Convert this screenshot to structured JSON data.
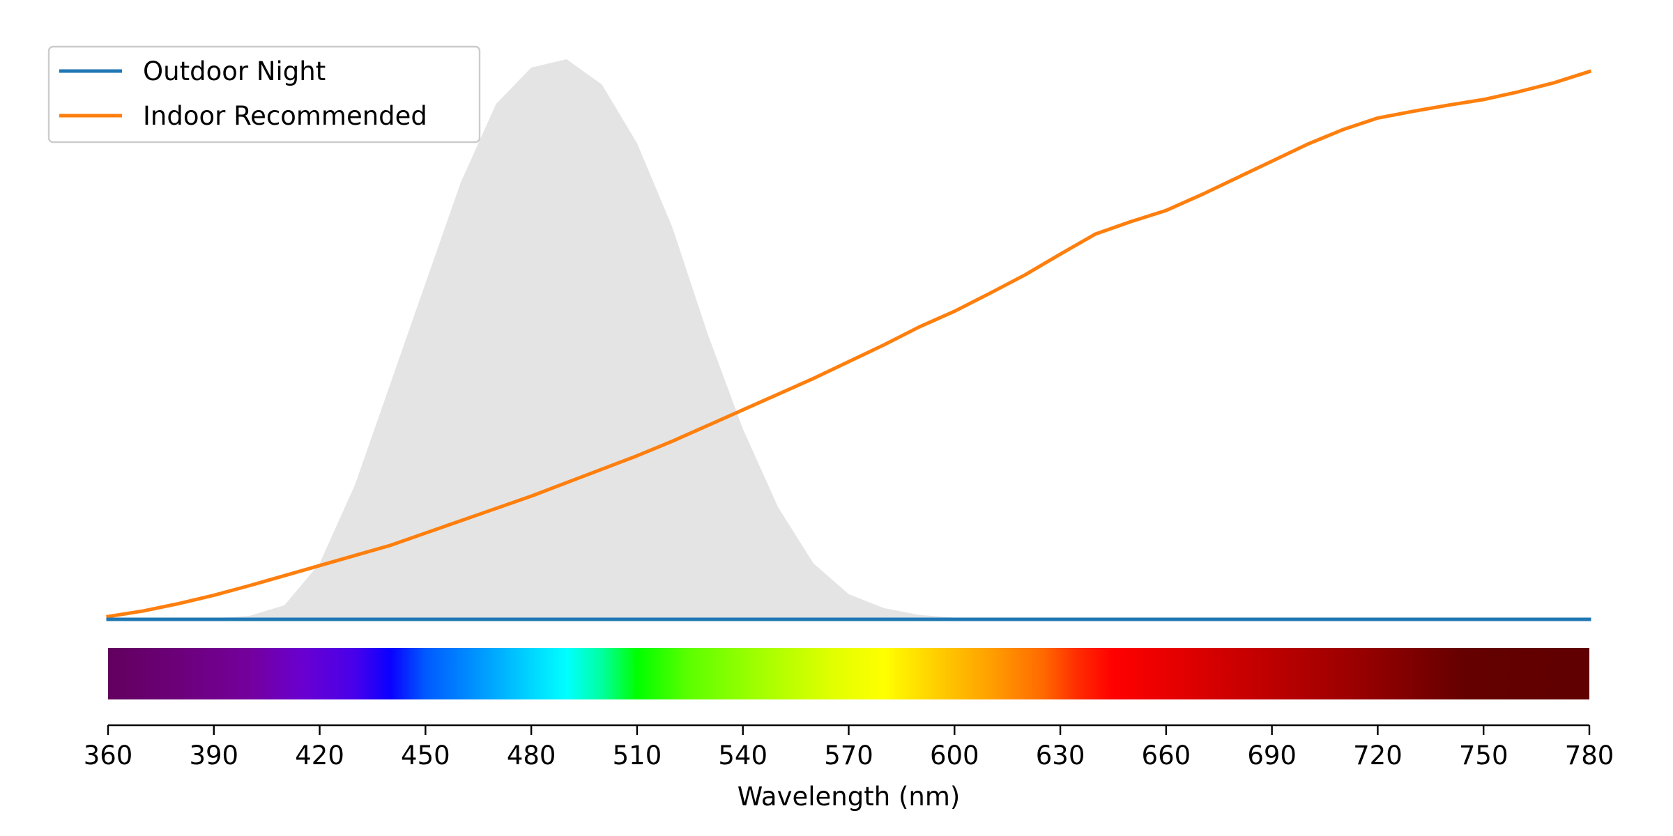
{
  "chart_data": {
    "type": "line",
    "title": "",
    "xlabel": "Wavelength (nm)",
    "ylabel": "",
    "xlim": [
      360,
      780
    ],
    "ylim": [
      0,
      1
    ],
    "grid": false,
    "legend_position": "top-left",
    "x_ticks": [
      360,
      390,
      420,
      450,
      480,
      510,
      540,
      570,
      600,
      630,
      660,
      690,
      720,
      750,
      780
    ],
    "series": [
      {
        "name": "Outdoor Night",
        "color": "#1f77b4",
        "x": [
          360,
          780
        ],
        "y": [
          0.0,
          0.0
        ]
      },
      {
        "name": "Indoor Recommended",
        "color": "#ff7f0e",
        "x": [
          360,
          370,
          380,
          390,
          400,
          410,
          420,
          430,
          440,
          450,
          460,
          470,
          480,
          490,
          500,
          510,
          520,
          530,
          540,
          550,
          560,
          570,
          580,
          590,
          600,
          610,
          620,
          630,
          640,
          650,
          660,
          670,
          680,
          690,
          700,
          710,
          720,
          730,
          740,
          750,
          760,
          770,
          780
        ],
        "y": [
          0.005,
          0.015,
          0.028,
          0.043,
          0.06,
          0.078,
          0.096,
          0.114,
          0.132,
          0.154,
          0.176,
          0.198,
          0.22,
          0.244,
          0.268,
          0.292,
          0.318,
          0.346,
          0.374,
          0.402,
          0.43,
          0.46,
          0.49,
          0.522,
          0.55,
          0.582,
          0.615,
          0.652,
          0.688,
          0.71,
          0.73,
          0.758,
          0.788,
          0.818,
          0.848,
          0.874,
          0.895,
          0.907,
          0.918,
          0.928,
          0.942,
          0.958,
          0.978
        ]
      }
    ],
    "sensitivity_area": {
      "color": "#e4e4e4",
      "x": [
        360,
        390,
        400,
        410,
        420,
        430,
        440,
        450,
        460,
        470,
        480,
        490,
        500,
        510,
        520,
        530,
        540,
        550,
        560,
        570,
        580,
        590,
        600,
        620,
        640,
        660,
        780
      ],
      "y": [
        0.0,
        0.002,
        0.006,
        0.025,
        0.1,
        0.24,
        0.42,
        0.6,
        0.78,
        0.92,
        0.985,
        1.0,
        0.955,
        0.85,
        0.7,
        0.51,
        0.34,
        0.2,
        0.1,
        0.045,
        0.02,
        0.008,
        0.003,
        0.001,
        0.0,
        0.0,
        0.0
      ]
    },
    "spectrum_bar": {
      "stops": [
        {
          "wavelength": 360,
          "color": "#62005e"
        },
        {
          "wavelength": 380,
          "color": "#6c007a"
        },
        {
          "wavelength": 400,
          "color": "#74009c"
        },
        {
          "wavelength": 415,
          "color": "#6a00d0"
        },
        {
          "wavelength": 430,
          "color": "#4800ea"
        },
        {
          "wavelength": 440,
          "color": "#0a00ff"
        },
        {
          "wavelength": 450,
          "color": "#005aff"
        },
        {
          "wavelength": 465,
          "color": "#0096ff"
        },
        {
          "wavelength": 480,
          "color": "#00d6ff"
        },
        {
          "wavelength": 490,
          "color": "#00ffff"
        },
        {
          "wavelength": 500,
          "color": "#00ffa0"
        },
        {
          "wavelength": 510,
          "color": "#00ff00"
        },
        {
          "wavelength": 525,
          "color": "#5eff00"
        },
        {
          "wavelength": 545,
          "color": "#a3ff00"
        },
        {
          "wavelength": 565,
          "color": "#e0ff00"
        },
        {
          "wavelength": 580,
          "color": "#ffff00"
        },
        {
          "wavelength": 595,
          "color": "#ffce00"
        },
        {
          "wavelength": 610,
          "color": "#ffa000"
        },
        {
          "wavelength": 625,
          "color": "#ff6a00"
        },
        {
          "wavelength": 635,
          "color": "#ff2b00"
        },
        {
          "wavelength": 645,
          "color": "#ff0000"
        },
        {
          "wavelength": 680,
          "color": "#cb0000"
        },
        {
          "wavelength": 715,
          "color": "#980000"
        },
        {
          "wavelength": 745,
          "color": "#640000"
        },
        {
          "wavelength": 780,
          "color": "#600000"
        }
      ]
    }
  }
}
